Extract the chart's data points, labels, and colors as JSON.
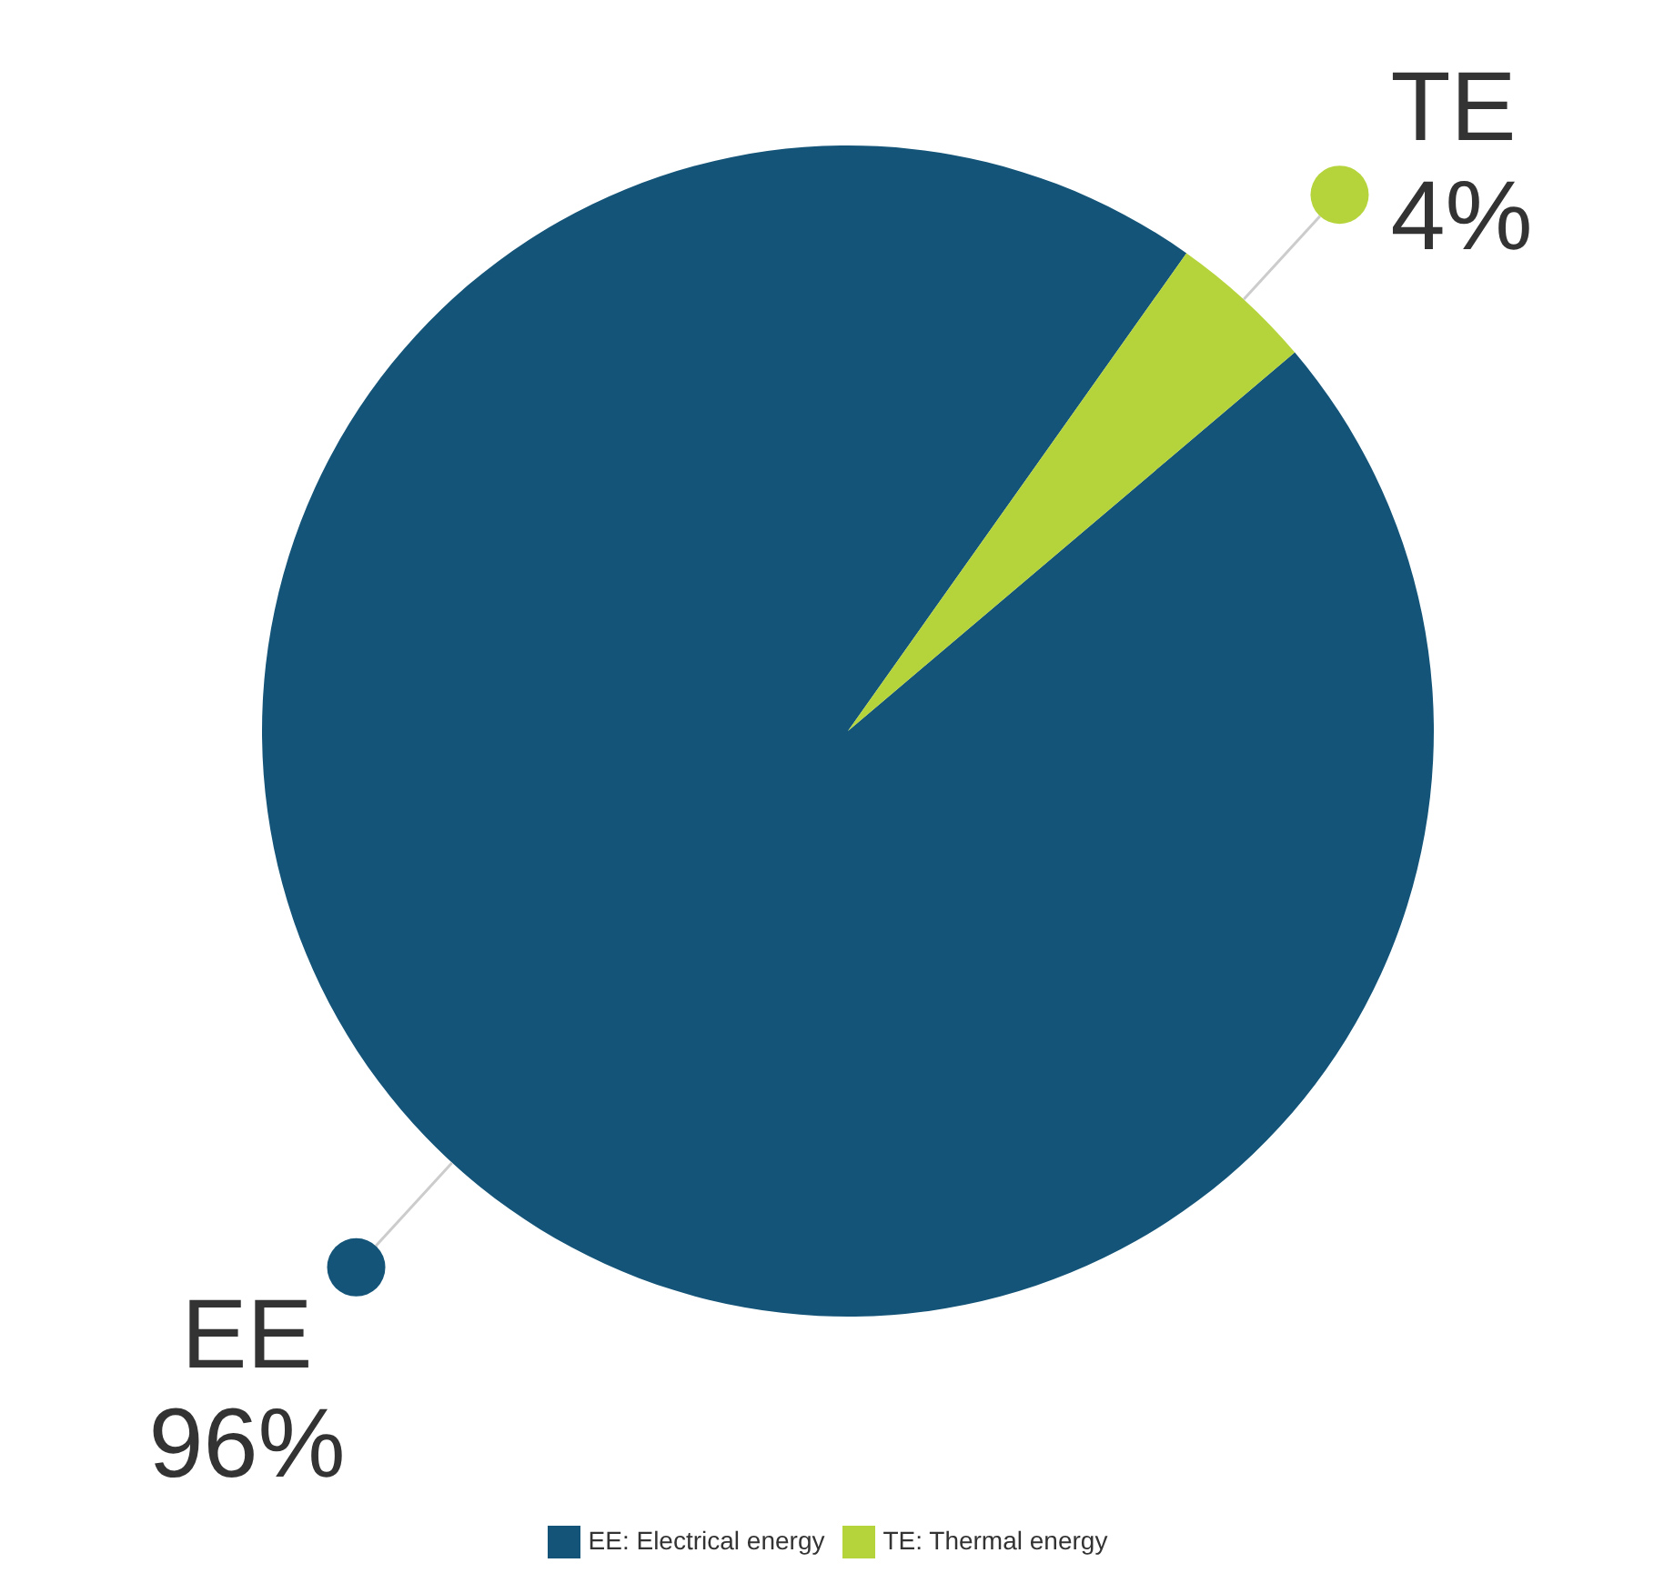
{
  "chart_data": {
    "type": "pie",
    "categories": [
      "EE: Electrical energy",
      "TE: Thermal energy"
    ],
    "values": [
      96,
      4
    ],
    "colors": [
      "#135478",
      "#b5d43c"
    ],
    "value_labels": [
      "96%",
      "4%"
    ],
    "legend": "bottom",
    "annotations": [
      "EE",
      "TE"
    ]
  }
}
